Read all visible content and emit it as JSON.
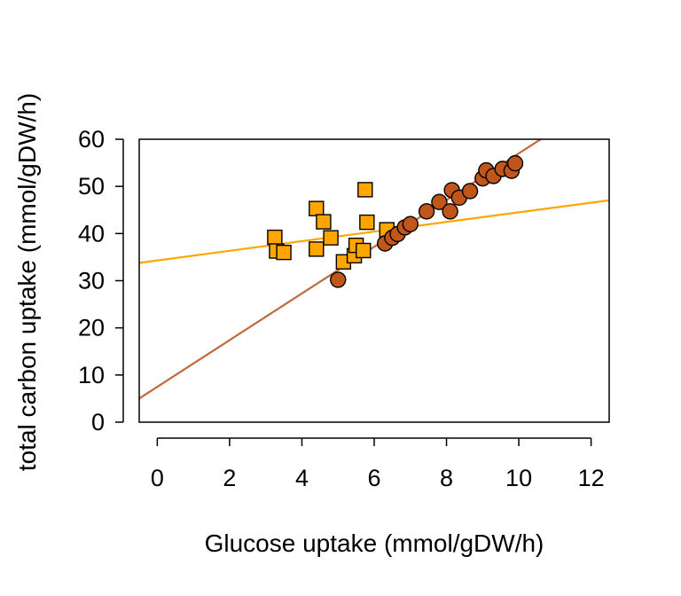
{
  "chart_data": {
    "type": "scatter",
    "xlabel": "Glucose uptake (mmol/gDW/h)",
    "ylabel": "total carbon uptake (mmol/gDW/h)",
    "xlim": [
      -0.5,
      12.5
    ],
    "ylim": [
      0,
      60
    ],
    "x_ticks": [
      "0",
      "2",
      "4",
      "6",
      "8",
      "10",
      "12"
    ],
    "y_ticks": [
      "0",
      "10",
      "20",
      "30",
      "40",
      "50",
      "60"
    ],
    "grid": false,
    "legend": "none",
    "series": [
      {
        "marker": "square",
        "color": "#FFA500",
        "points": [
          {
            "x": 3.25,
            "y": 39.2
          },
          {
            "x": 3.3,
            "y": 36.3
          },
          {
            "x": 3.5,
            "y": 36.0
          },
          {
            "x": 4.4,
            "y": 45.3
          },
          {
            "x": 4.4,
            "y": 36.7
          },
          {
            "x": 4.6,
            "y": 42.5
          },
          {
            "x": 4.8,
            "y": 39.1
          },
          {
            "x": 5.15,
            "y": 34.0
          },
          {
            "x": 5.45,
            "y": 35.3
          },
          {
            "x": 5.5,
            "y": 37.5
          },
          {
            "x": 5.7,
            "y": 36.4
          },
          {
            "x": 5.75,
            "y": 49.3
          },
          {
            "x": 5.8,
            "y": 42.4
          },
          {
            "x": 6.35,
            "y": 40.8
          }
        ],
        "fit": {
          "intercept": 34.3,
          "slope": 1.02,
          "color": "#FFA500"
        }
      },
      {
        "marker": "circle",
        "color": "#C0561A",
        "points": [
          {
            "x": 5.0,
            "y": 30.2
          },
          {
            "x": 6.3,
            "y": 37.9
          },
          {
            "x": 6.5,
            "y": 39.1
          },
          {
            "x": 6.65,
            "y": 39.9
          },
          {
            "x": 6.85,
            "y": 41.3
          },
          {
            "x": 7.0,
            "y": 42.0
          },
          {
            "x": 7.45,
            "y": 44.7
          },
          {
            "x": 7.8,
            "y": 46.7
          },
          {
            "x": 8.1,
            "y": 44.7
          },
          {
            "x": 8.15,
            "y": 49.2
          },
          {
            "x": 8.35,
            "y": 47.6
          },
          {
            "x": 8.65,
            "y": 49.0
          },
          {
            "x": 9.0,
            "y": 51.7
          },
          {
            "x": 9.1,
            "y": 53.4
          },
          {
            "x": 9.3,
            "y": 52.2
          },
          {
            "x": 9.55,
            "y": 53.7
          },
          {
            "x": 9.8,
            "y": 53.3
          },
          {
            "x": 9.9,
            "y": 54.9
          }
        ],
        "fit": {
          "intercept": 7.5,
          "slope": 4.95,
          "color": "#C0693A"
        }
      }
    ]
  }
}
